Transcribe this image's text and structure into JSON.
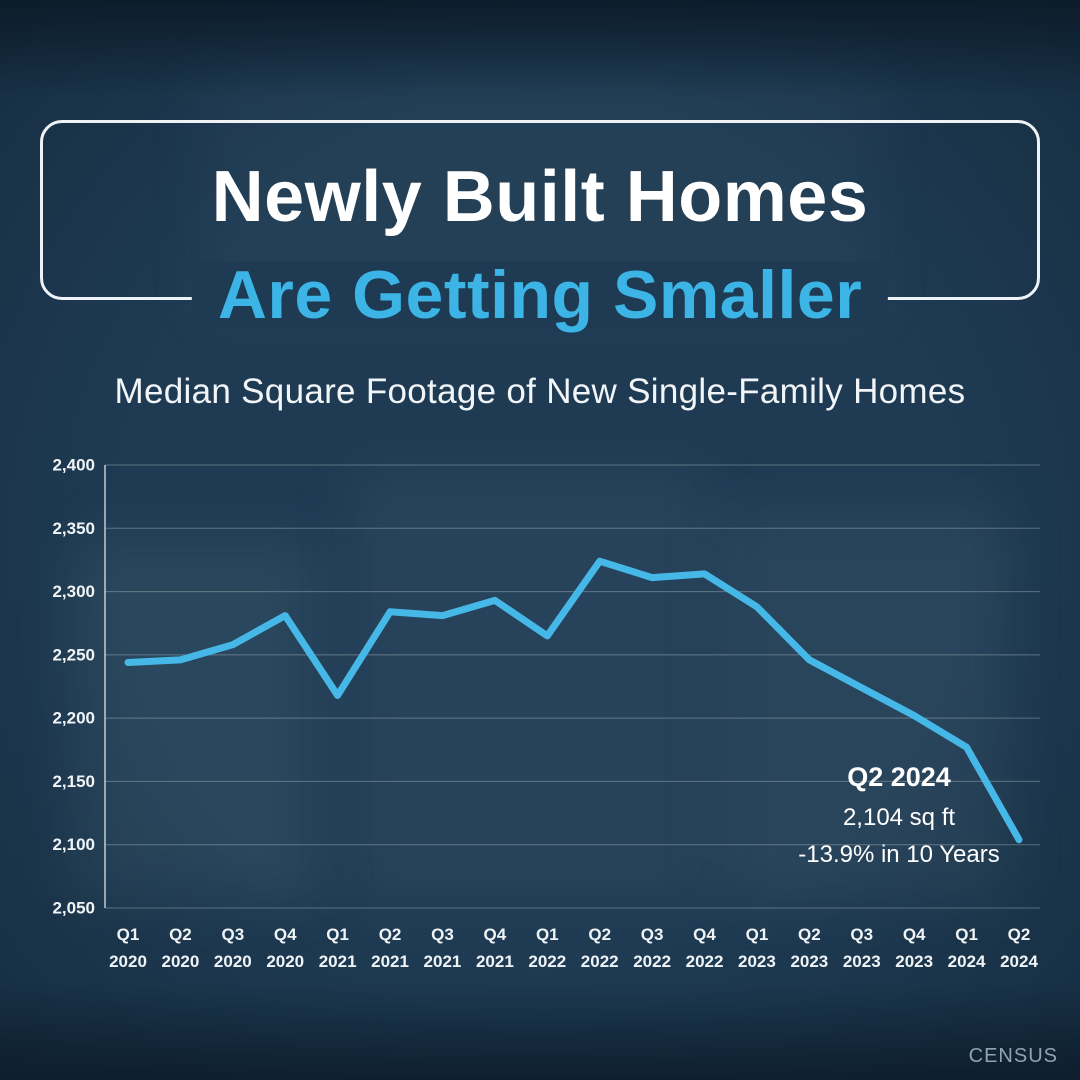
{
  "page": {
    "title_line1": "Newly Built Homes",
    "title_line2": "Are Getting Smaller",
    "subtitle": "Median Square Footage of New Single-Family Homes",
    "watermark": "CENSUS",
    "colors": {
      "background": "#1e3b53",
      "accent": "#3cb4e5",
      "line": "#45b8e8",
      "text": "#ffffff"
    }
  },
  "annotation": {
    "label": "Q2 2024",
    "value": "2,104 sq ft",
    "change": "-13.9% in 10 Years"
  },
  "chart_data": {
    "type": "line",
    "title": "Median Square Footage of New Single-Family Homes",
    "xlabel": "",
    "ylabel": "",
    "ylim": [
      2050,
      2400
    ],
    "grid": true,
    "legend": "none",
    "yticks": [
      {
        "value": 2050,
        "label": "2,050"
      },
      {
        "value": 2100,
        "label": "2,100"
      },
      {
        "value": 2150,
        "label": "2,150"
      },
      {
        "value": 2200,
        "label": "2,200"
      },
      {
        "value": 2250,
        "label": "2,250"
      },
      {
        "value": 2300,
        "label": "2,300"
      },
      {
        "value": 2350,
        "label": "2,350"
      },
      {
        "value": 2400,
        "label": "2,400"
      }
    ],
    "categories": [
      {
        "q": "Q1",
        "year": "2020"
      },
      {
        "q": "Q2",
        "year": "2020"
      },
      {
        "q": "Q3",
        "year": "2020"
      },
      {
        "q": "Q4",
        "year": "2020"
      },
      {
        "q": "Q1",
        "year": "2021"
      },
      {
        "q": "Q2",
        "year": "2021"
      },
      {
        "q": "Q3",
        "year": "2021"
      },
      {
        "q": "Q4",
        "year": "2021"
      },
      {
        "q": "Q1",
        "year": "2022"
      },
      {
        "q": "Q2",
        "year": "2022"
      },
      {
        "q": "Q3",
        "year": "2022"
      },
      {
        "q": "Q4",
        "year": "2022"
      },
      {
        "q": "Q1",
        "year": "2023"
      },
      {
        "q": "Q2",
        "year": "2023"
      },
      {
        "q": "Q3",
        "year": "2023"
      },
      {
        "q": "Q4",
        "year": "2023"
      },
      {
        "q": "Q1",
        "year": "2024"
      },
      {
        "q": "Q2",
        "year": "2024"
      }
    ],
    "values": [
      2244,
      2246,
      2258,
      2281,
      2218,
      2284,
      2281,
      2293,
      2265,
      2324,
      2311,
      2314,
      2288,
      2246,
      2224,
      2202,
      2177,
      2104
    ]
  }
}
